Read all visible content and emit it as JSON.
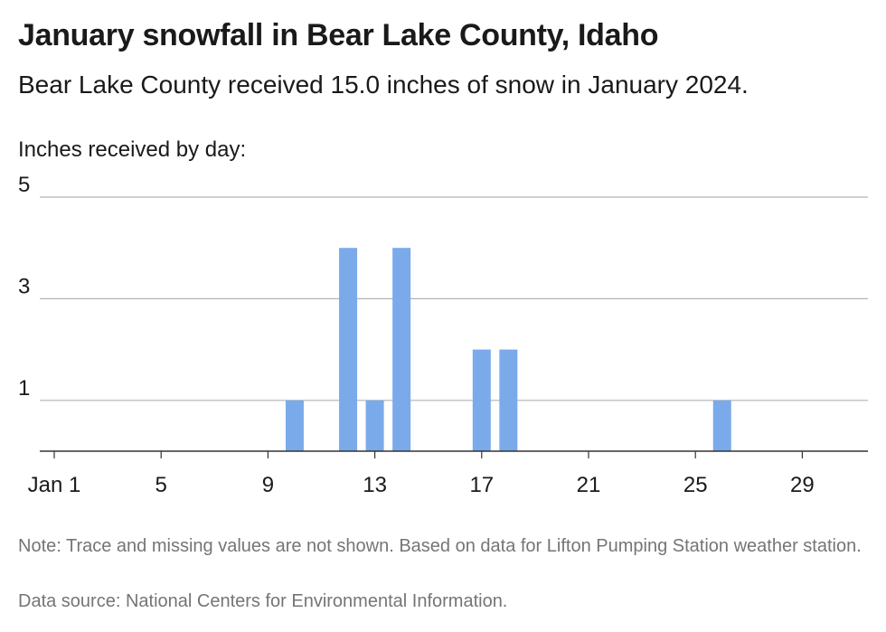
{
  "header": {
    "title": "January snowfall in Bear Lake County, Idaho",
    "subtitle": "Bear Lake County received 15.0 inches of snow in January 2024.",
    "axis_caption": "Inches received by day:"
  },
  "footer": {
    "note": "Note: Trace and missing values are not shown. Based on data for Lifton Pumping Station weather station.",
    "source": "Data source: National Centers for Environmental Information."
  },
  "colors": {
    "bar": "#7aaaea",
    "grid": "#b3b3b3",
    "axis": "#333333",
    "text": "#1a1a1a",
    "muted": "#757575"
  },
  "chart_data": {
    "type": "bar",
    "title": "January snowfall in Bear Lake County, Idaho",
    "ylabel": "Inches received by day:",
    "ylim": [
      0,
      5
    ],
    "yticks": [
      1,
      3,
      5
    ],
    "x_tick_labels": [
      {
        "day": 1,
        "label": "Jan 1"
      },
      {
        "day": 5,
        "label": "5"
      },
      {
        "day": 9,
        "label": "9"
      },
      {
        "day": 13,
        "label": "13"
      },
      {
        "day": 17,
        "label": "17"
      },
      {
        "day": 21,
        "label": "21"
      },
      {
        "day": 25,
        "label": "25"
      },
      {
        "day": 29,
        "label": "29"
      }
    ],
    "x_domain": [
      1,
      31
    ],
    "bars": [
      {
        "day": 10,
        "value": 1
      },
      {
        "day": 12,
        "value": 4
      },
      {
        "day": 13,
        "value": 1
      },
      {
        "day": 14,
        "value": 4
      },
      {
        "day": 17,
        "value": 2
      },
      {
        "day": 18,
        "value": 2
      },
      {
        "day": 26,
        "value": 1
      }
    ],
    "grid": true,
    "legend": "none"
  }
}
